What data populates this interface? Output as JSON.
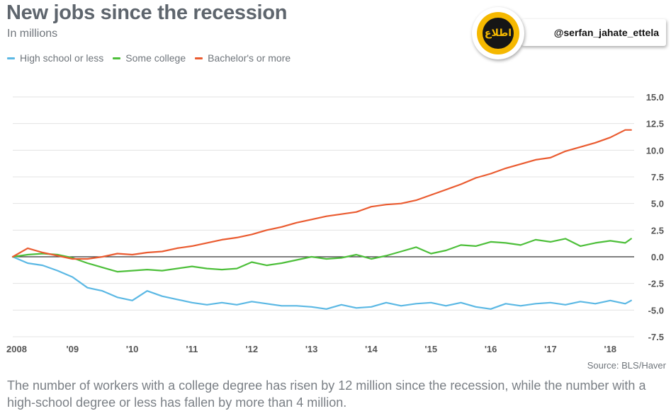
{
  "header": {
    "title": "New jobs since the recession",
    "subtitle": "In millions"
  },
  "badge": {
    "handle": "@serfan_jahate_ettela",
    "logo_text": "اطلاع"
  },
  "colors": {
    "high_school": "#5bb8e4",
    "some_college": "#4dbf3a",
    "bachelors": "#ea5b30",
    "grid": "#e3e3e3",
    "zero_line": "#333333",
    "axis_text": "#555555"
  },
  "source": "Source: BLS/Haver",
  "caption": "The number of workers with a college degree has risen by 12 million since the recession, while the number with a high-school degree or less has fallen by more than 4 million.",
  "chart_data": {
    "type": "line",
    "title": "New jobs since the recession",
    "subtitle": "In millions",
    "x_ticks": [
      "2008",
      "'09",
      "'10",
      "'11",
      "'12",
      "'13",
      "'14",
      "'15",
      "'16",
      "'17",
      "'18"
    ],
    "y_ticks": [
      "15.0",
      "12.5",
      "10.0",
      "7.5",
      "5.0",
      "2.5",
      "0.0",
      "-2.5",
      "-5.0",
      "-7.5"
    ],
    "ylim": [
      -7.5,
      15
    ],
    "xlim": [
      2008,
      2018.4
    ],
    "grid": true,
    "legend_position": "top-left",
    "series": [
      {
        "name": "High school or less",
        "color": "#5bb8e4",
        "x": [
          2008.0,
          2008.25,
          2008.5,
          2008.75,
          2009.0,
          2009.25,
          2009.5,
          2009.75,
          2010.0,
          2010.25,
          2010.5,
          2010.75,
          2011.0,
          2011.25,
          2011.5,
          2011.75,
          2012.0,
          2012.25,
          2012.5,
          2012.75,
          2013.0,
          2013.25,
          2013.5,
          2013.75,
          2014.0,
          2014.25,
          2014.5,
          2014.75,
          2015.0,
          2015.25,
          2015.5,
          2015.75,
          2016.0,
          2016.25,
          2016.5,
          2016.75,
          2017.0,
          2017.25,
          2017.5,
          2017.75,
          2018.0,
          2018.25,
          2018.35
        ],
        "values": [
          0.0,
          -0.6,
          -0.8,
          -1.3,
          -1.9,
          -2.9,
          -3.2,
          -3.8,
          -4.1,
          -3.2,
          -3.7,
          -4.0,
          -4.3,
          -4.5,
          -4.3,
          -4.5,
          -4.2,
          -4.4,
          -4.6,
          -4.6,
          -4.7,
          -4.9,
          -4.5,
          -4.8,
          -4.7,
          -4.3,
          -4.6,
          -4.4,
          -4.3,
          -4.6,
          -4.3,
          -4.7,
          -4.9,
          -4.4,
          -4.6,
          -4.4,
          -4.3,
          -4.5,
          -4.2,
          -4.4,
          -4.1,
          -4.4,
          -4.1
        ]
      },
      {
        "name": "Some college",
        "color": "#4dbf3a",
        "x": [
          2008.0,
          2008.25,
          2008.5,
          2008.75,
          2009.0,
          2009.25,
          2009.5,
          2009.75,
          2010.0,
          2010.25,
          2010.5,
          2010.75,
          2011.0,
          2011.25,
          2011.5,
          2011.75,
          2012.0,
          2012.25,
          2012.5,
          2012.75,
          2013.0,
          2013.25,
          2013.5,
          2013.75,
          2014.0,
          2014.25,
          2014.5,
          2014.75,
          2015.0,
          2015.25,
          2015.5,
          2015.75,
          2016.0,
          2016.25,
          2016.5,
          2016.75,
          2017.0,
          2017.25,
          2017.5,
          2017.75,
          2018.0,
          2018.25,
          2018.35
        ],
        "values": [
          0.0,
          0.2,
          0.3,
          0.2,
          -0.1,
          -0.6,
          -1.0,
          -1.4,
          -1.3,
          -1.2,
          -1.3,
          -1.1,
          -0.9,
          -1.1,
          -1.2,
          -1.1,
          -0.5,
          -0.8,
          -0.6,
          -0.3,
          0.0,
          -0.2,
          -0.1,
          0.2,
          -0.2,
          0.1,
          0.5,
          0.9,
          0.3,
          0.6,
          1.1,
          1.0,
          1.4,
          1.3,
          1.1,
          1.6,
          1.4,
          1.7,
          1.0,
          1.3,
          1.5,
          1.3,
          1.7
        ]
      },
      {
        "name": "Bachelor's or more",
        "color": "#ea5b30",
        "x": [
          2008.0,
          2008.25,
          2008.5,
          2008.75,
          2009.0,
          2009.25,
          2009.5,
          2009.75,
          2010.0,
          2010.25,
          2010.5,
          2010.75,
          2011.0,
          2011.25,
          2011.5,
          2011.75,
          2012.0,
          2012.25,
          2012.5,
          2012.75,
          2013.0,
          2013.25,
          2013.5,
          2013.75,
          2014.0,
          2014.25,
          2014.5,
          2014.75,
          2015.0,
          2015.25,
          2015.5,
          2015.75,
          2016.0,
          2016.25,
          2016.5,
          2016.75,
          2017.0,
          2017.25,
          2017.5,
          2017.75,
          2018.0,
          2018.25,
          2018.35
        ],
        "values": [
          0.0,
          0.8,
          0.4,
          0.1,
          -0.2,
          -0.2,
          0.0,
          0.3,
          0.2,
          0.4,
          0.5,
          0.8,
          1.0,
          1.3,
          1.6,
          1.8,
          2.1,
          2.5,
          2.8,
          3.2,
          3.5,
          3.8,
          4.0,
          4.2,
          4.7,
          4.9,
          5.0,
          5.3,
          5.8,
          6.3,
          6.8,
          7.4,
          7.8,
          8.3,
          8.7,
          9.1,
          9.3,
          9.9,
          10.3,
          10.7,
          11.2,
          11.9,
          11.9
        ]
      }
    ]
  }
}
